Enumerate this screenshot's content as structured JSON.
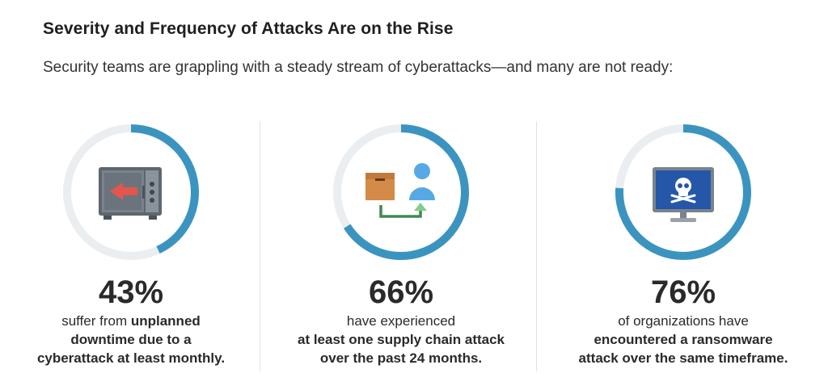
{
  "title": "Severity and Frequency of Attacks Are on the Rise",
  "subtitle": "Security teams are grappling with a steady stream of cyberattacks—and many are not ready:",
  "colors": {
    "ring_fill": "#3b94c0",
    "ring_track": "#ebeef0"
  },
  "stats": [
    {
      "percent_label": "43%",
      "percent_value": 43,
      "icon": "safe-icon",
      "line1_normal": "suffer from ",
      "line1_bold": "unplanned",
      "line2": "downtime due to a",
      "line3": "cyberattack at least monthly."
    },
    {
      "percent_label": "66%",
      "percent_value": 66,
      "icon": "supply-chain-icon",
      "line1": "have experienced",
      "line2": "at least one supply chain attack",
      "line3": "over the past 24 months."
    },
    {
      "percent_label": "76%",
      "percent_value": 76,
      "icon": "ransomware-monitor-icon",
      "line1": "of organizations have",
      "line2": "encountered a ransomware",
      "line3": "attack over the same timeframe."
    }
  ]
}
